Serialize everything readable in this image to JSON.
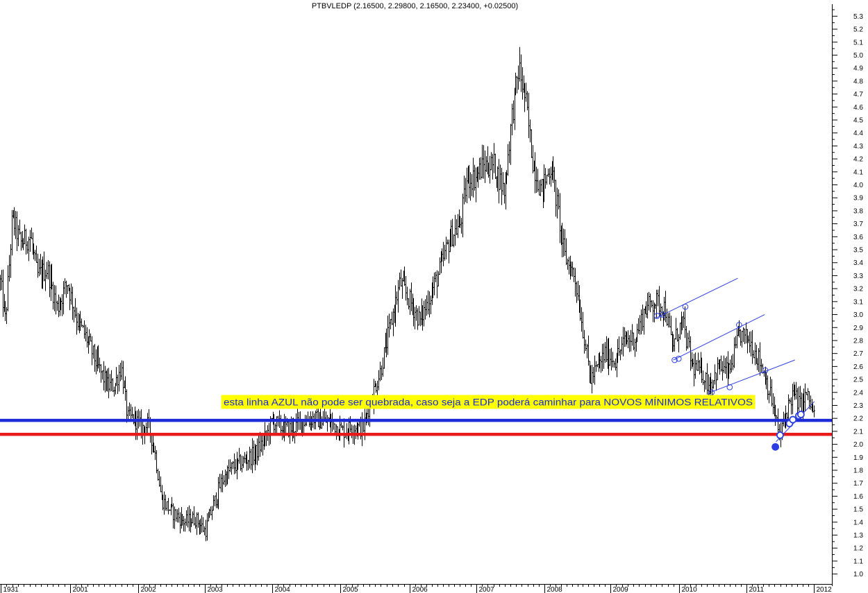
{
  "chart_data": {
    "type": "bar",
    "style": "ohlc",
    "title": "PTBVLEDP (2.16500, 2.29800, 2.16500, 2.23400, +0.02500)",
    "x_ticks": [
      "1931",
      "2001",
      "2002",
      "2003",
      "2004",
      "2005",
      "2006",
      "2007",
      "2008",
      "2009",
      "2010",
      "2011",
      "2012"
    ],
    "y_ticks": [
      "1.0",
      "1.1",
      "1.2",
      "1.3",
      "1.4",
      "1.5",
      "1.6",
      "1.7",
      "1.8",
      "1.9",
      "2.0",
      "2.1",
      "2.2",
      "2.3",
      "2.4",
      "2.5",
      "2.6",
      "2.7",
      "2.8",
      "2.9",
      "3.0",
      "3.1",
      "3.2",
      "3.3",
      "3.4",
      "3.5",
      "3.6",
      "3.7",
      "3.8",
      "3.9",
      "4.0",
      "4.1",
      "4.2",
      "4.3",
      "4.4",
      "4.5",
      "4.6",
      "4.7",
      "4.8",
      "4.9",
      "5.0",
      "5.1",
      "5.2",
      "5.3"
    ],
    "ylim": [
      0.95,
      5.35
    ],
    "xlim": [
      2000.0,
      2012.35
    ],
    "price_path": [
      [
        2000.0,
        3.25
      ],
      [
        2000.08,
        2.95
      ],
      [
        2000.18,
        3.75
      ],
      [
        2000.3,
        3.55
      ],
      [
        2000.45,
        3.6
      ],
      [
        2000.55,
        3.3
      ],
      [
        2000.7,
        3.35
      ],
      [
        2000.85,
        3.05
      ],
      [
        2001.0,
        3.25
      ],
      [
        2001.15,
        2.95
      ],
      [
        2001.3,
        2.8
      ],
      [
        2001.45,
        2.6
      ],
      [
        2001.6,
        2.45
      ],
      [
        2001.7,
        2.45
      ],
      [
        2001.8,
        2.6
      ],
      [
        2001.9,
        2.2
      ],
      [
        2002.0,
        2.2
      ],
      [
        2002.1,
        2.12
      ],
      [
        2002.2,
        2.15
      ],
      [
        2002.3,
        1.95
      ],
      [
        2002.4,
        1.58
      ],
      [
        2002.55,
        1.48
      ],
      [
        2002.75,
        1.4
      ],
      [
        2002.9,
        1.43
      ],
      [
        2003.05,
        1.33
      ],
      [
        2003.15,
        1.5
      ],
      [
        2003.3,
        1.72
      ],
      [
        2003.45,
        1.82
      ],
      [
        2003.6,
        1.86
      ],
      [
        2003.8,
        1.93
      ],
      [
        2003.95,
        2.05
      ],
      [
        2004.05,
        2.18
      ],
      [
        2004.2,
        2.12
      ],
      [
        2004.35,
        2.12
      ],
      [
        2004.5,
        2.18
      ],
      [
        2004.65,
        2.2
      ],
      [
        2004.8,
        2.18
      ],
      [
        2004.95,
        2.16
      ],
      [
        2005.1,
        2.1
      ],
      [
        2005.25,
        2.14
      ],
      [
        2005.4,
        2.12
      ],
      [
        2005.5,
        2.32
      ],
      [
        2005.65,
        2.55
      ],
      [
        2005.8,
        2.9
      ],
      [
        2005.95,
        3.25
      ],
      [
        2006.1,
        3.1
      ],
      [
        2006.25,
        2.95
      ],
      [
        2006.4,
        3.15
      ],
      [
        2006.55,
        3.35
      ],
      [
        2006.7,
        3.6
      ],
      [
        2006.85,
        3.7
      ],
      [
        2006.95,
        4.05
      ],
      [
        2007.05,
        4.05
      ],
      [
        2007.2,
        4.15
      ],
      [
        2007.35,
        4.15
      ],
      [
        2007.5,
        3.95
      ],
      [
        2007.62,
        4.55
      ],
      [
        2007.72,
        4.9
      ],
      [
        2007.82,
        4.65
      ],
      [
        2007.92,
        4.2
      ],
      [
        2008.05,
        3.95
      ],
      [
        2008.2,
        4.15
      ],
      [
        2008.3,
        3.8
      ],
      [
        2008.4,
        3.45
      ],
      [
        2008.55,
        3.3
      ],
      [
        2008.7,
        2.8
      ],
      [
        2008.78,
        2.5
      ],
      [
        2008.9,
        2.6
      ],
      [
        2009.0,
        2.7
      ],
      [
        2009.15,
        2.65
      ],
      [
        2009.3,
        2.8
      ],
      [
        2009.45,
        2.82
      ],
      [
        2009.6,
        3.05
      ],
      [
        2009.75,
        3.1
      ],
      [
        2009.9,
        3.05
      ],
      [
        2010.0,
        2.75
      ],
      [
        2010.15,
        2.95
      ],
      [
        2010.3,
        2.6
      ],
      [
        2010.45,
        2.55
      ],
      [
        2010.55,
        2.45
      ],
      [
        2010.7,
        2.6
      ],
      [
        2010.85,
        2.55
      ],
      [
        2011.0,
        2.85
      ],
      [
        2011.15,
        2.8
      ],
      [
        2011.3,
        2.65
      ],
      [
        2011.4,
        2.5
      ],
      [
        2011.5,
        2.3
      ],
      [
        2011.6,
        2.05
      ],
      [
        2011.7,
        2.25
      ],
      [
        2011.8,
        2.4
      ],
      [
        2011.9,
        2.3
      ],
      [
        2012.0,
        2.38
      ],
      [
        2012.12,
        2.22
      ]
    ],
    "annotation": "esta linha AZUL não pode ser quebrada, caso seja a EDP poderá caminhar para NOVOS MÍNIMOS RELATIVOS",
    "horizontal_lines": [
      {
        "color": "#1d2bd6",
        "y": 2.184,
        "label": "azul"
      },
      {
        "color": "#e81b1b",
        "y": 2.077,
        "label": "vermelha"
      }
    ],
    "trend_lines": [
      {
        "x0": 2009.75,
        "y0": 2.97,
        "x1": 2010.98,
        "y1": 3.28
      },
      {
        "x0": 2010.02,
        "y0": 2.65,
        "x1": 2011.38,
        "y1": 3.0
      },
      {
        "x0": 2010.57,
        "y0": 2.4,
        "x1": 2011.83,
        "y1": 2.65
      }
    ],
    "circles": [
      {
        "x": 2009.78,
        "y": 2.99
      },
      {
        "x": 2009.86,
        "y": 3.0
      },
      {
        "x": 2010.2,
        "y": 3.06
      },
      {
        "x": 2010.04,
        "y": 2.65
      },
      {
        "x": 2010.1,
        "y": 2.66
      },
      {
        "x": 2011.0,
        "y": 2.92
      },
      {
        "x": 2010.59,
        "y": 2.4
      },
      {
        "x": 2010.86,
        "y": 2.44
      },
      {
        "x": 2011.39,
        "y": 2.57
      }
    ],
    "pivot_points": [
      {
        "x": 2011.54,
        "y": 1.98,
        "filled": true
      },
      {
        "x": 2011.61,
        "y": 2.07,
        "filled": false
      },
      {
        "x": 2011.75,
        "y": 2.16,
        "filled": false
      },
      {
        "x": 2011.8,
        "y": 2.19,
        "filled": false
      },
      {
        "x": 2011.89,
        "y": 2.22,
        "filled": false
      },
      {
        "x": 2011.92,
        "y": 2.23,
        "filled": false
      }
    ],
    "support_trend": {
      "x0": 2011.55,
      "y0": 2.02,
      "x1": 2012.12,
      "y1": 2.33
    },
    "grid": false
  }
}
